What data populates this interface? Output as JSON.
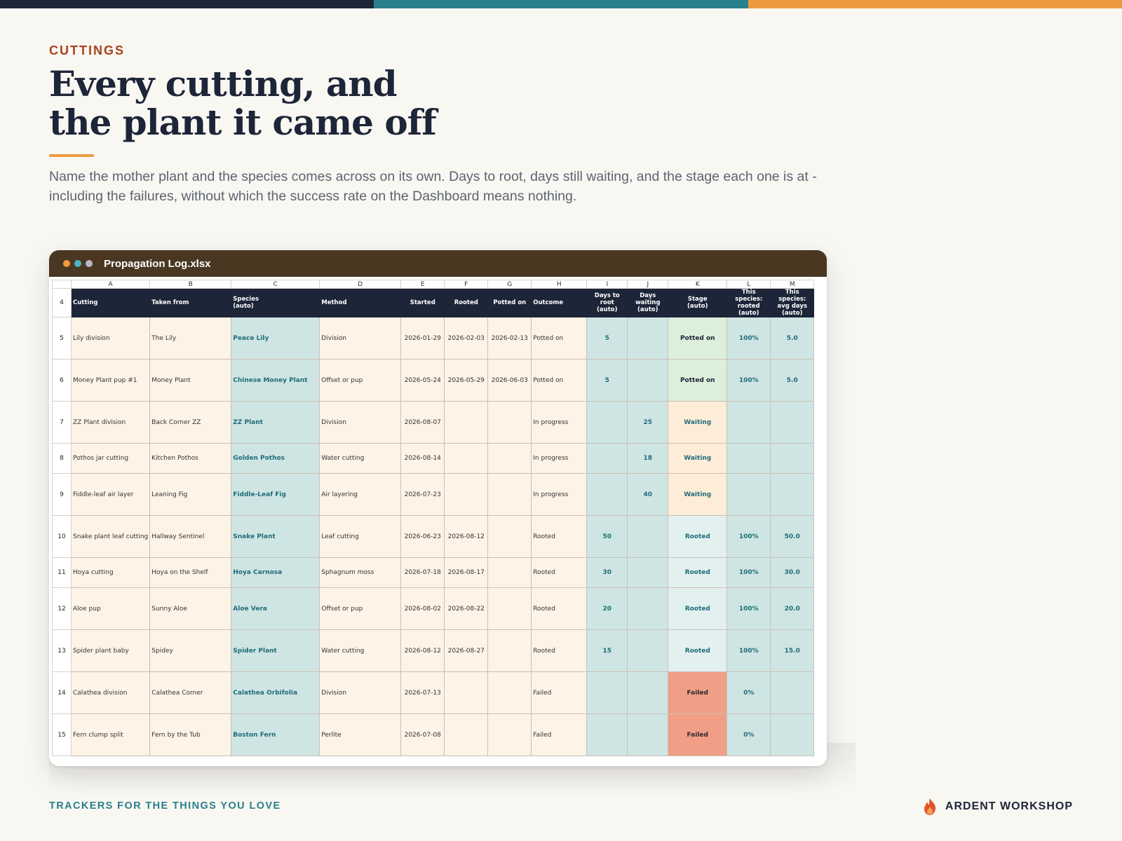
{
  "colors": {
    "navy": "#1d2538",
    "teal": "#2a7f8c",
    "orange": "#ec9a3f",
    "rust": "#a8421d",
    "window_bar": "#4a3722",
    "dot1": "#ec9a3f",
    "dot2": "#4fb3bf",
    "dot3": "#b9b9c3"
  },
  "eyebrow": "CUTTINGS",
  "headline": {
    "line1": "Every cutting, and",
    "line2": "the plant it came off"
  },
  "lede": "Name the mother plant and the species comes across on its own. Days to root, days still waiting, and the stage each one is at - including the failures, without which the success rate on the Dashboard means nothing.",
  "window": {
    "title": "Propagation Log.xlsx"
  },
  "sheet": {
    "column_letters": [
      "A",
      "B",
      "C",
      "D",
      "E",
      "F",
      "G",
      "H",
      "I",
      "J",
      "K",
      "L",
      "M"
    ],
    "header_row_number": "4",
    "headers": [
      "Cutting",
      "Taken from",
      "Species\n(auto)",
      "Method",
      "Started",
      "Rooted",
      "Potted on",
      "Outcome",
      "Days to root\n(auto)",
      "Days waiting\n(auto)",
      "Stage\n(auto)",
      "This species:\nrooted\n(auto)",
      "This species:\navg days\n(auto)"
    ],
    "rows": [
      {
        "num": "5",
        "cutting": "Lily division",
        "taken_from": "The Lily",
        "species": "Peace Lily",
        "method": "Division",
        "started": "2026-01-29",
        "rooted": "2026-02-03",
        "potted_on": "2026-02-13",
        "outcome": "Potted on",
        "days_to_root": "5",
        "days_waiting": "",
        "stage": "Potted on",
        "stage_kind": "potted",
        "sp_rooted": "100%",
        "sp_avg": "5.0",
        "tall": true
      },
      {
        "num": "6",
        "cutting": "Money Plant pup #1",
        "taken_from": "Money Plant",
        "species": "Chinese Money Plant",
        "method": "Offset or pup",
        "started": "2026-05-24",
        "rooted": "2026-05-29",
        "potted_on": "2026-06-03",
        "outcome": "Potted on",
        "days_to_root": "5",
        "days_waiting": "",
        "stage": "Potted on",
        "stage_kind": "potted",
        "sp_rooted": "100%",
        "sp_avg": "5.0",
        "tall": true
      },
      {
        "num": "7",
        "cutting": "ZZ Plant division",
        "taken_from": "Back Corner ZZ",
        "species": "ZZ Plant",
        "method": "Division",
        "started": "2026-08-07",
        "rooted": "",
        "potted_on": "",
        "outcome": "In progress",
        "days_to_root": "",
        "days_waiting": "25",
        "stage": "Waiting",
        "stage_kind": "waiting",
        "sp_rooted": "",
        "sp_avg": "",
        "tall": true
      },
      {
        "num": "8",
        "cutting": "Pothos jar cutting",
        "taken_from": "Kitchen Pothos",
        "species": "Golden Pothos",
        "method": "Water cutting",
        "started": "2026-08-14",
        "rooted": "",
        "potted_on": "",
        "outcome": "In progress",
        "days_to_root": "",
        "days_waiting": "18",
        "stage": "Waiting",
        "stage_kind": "waiting",
        "sp_rooted": "",
        "sp_avg": "",
        "tall": false
      },
      {
        "num": "9",
        "cutting": "Fiddle-leaf air layer",
        "taken_from": "Leaning Fig",
        "species": "Fiddle-Leaf Fig",
        "method": "Air layering",
        "started": "2026-07-23",
        "rooted": "",
        "potted_on": "",
        "outcome": "In progress",
        "days_to_root": "",
        "days_waiting": "40",
        "stage": "Waiting",
        "stage_kind": "waiting",
        "sp_rooted": "",
        "sp_avg": "",
        "tall": true
      },
      {
        "num": "10",
        "cutting": "Snake plant leaf cutting",
        "taken_from": "Hallway Sentinel",
        "species": "Snake Plant",
        "method": "Leaf cutting",
        "started": "2026-06-23",
        "rooted": "2026-08-12",
        "potted_on": "",
        "outcome": "Rooted",
        "days_to_root": "50",
        "days_waiting": "",
        "stage": "Rooted",
        "stage_kind": "rooted",
        "sp_rooted": "100%",
        "sp_avg": "50.0",
        "tall": true
      },
      {
        "num": "11",
        "cutting": "Hoya cutting",
        "taken_from": "Hoya on the Shelf",
        "species": "Hoya Carnosa",
        "method": "Sphagnum moss",
        "started": "2026-07-18",
        "rooted": "2026-08-17",
        "potted_on": "",
        "outcome": "Rooted",
        "days_to_root": "30",
        "days_waiting": "",
        "stage": "Rooted",
        "stage_kind": "rooted",
        "sp_rooted": "100%",
        "sp_avg": "30.0",
        "tall": false
      },
      {
        "num": "12",
        "cutting": "Aloe pup",
        "taken_from": "Sunny Aloe",
        "species": "Aloe Vera",
        "method": "Offset or pup",
        "started": "2026-08-02",
        "rooted": "2026-08-22",
        "potted_on": "",
        "outcome": "Rooted",
        "days_to_root": "20",
        "days_waiting": "",
        "stage": "Rooted",
        "stage_kind": "rooted",
        "sp_rooted": "100%",
        "sp_avg": "20.0",
        "tall": true
      },
      {
        "num": "13",
        "cutting": "Spider plant baby",
        "taken_from": "Spidey",
        "species": "Spider Plant",
        "method": "Water cutting",
        "started": "2026-08-12",
        "rooted": "2026-08-27",
        "potted_on": "",
        "outcome": "Rooted",
        "days_to_root": "15",
        "days_waiting": "",
        "stage": "Rooted",
        "stage_kind": "rooted",
        "sp_rooted": "100%",
        "sp_avg": "15.0",
        "tall": true
      },
      {
        "num": "14",
        "cutting": "Calathea division",
        "taken_from": "Calathea Corner",
        "species": "Calathea Orbifolia",
        "method": "Division",
        "started": "2026-07-13",
        "rooted": "",
        "potted_on": "",
        "outcome": "Failed",
        "days_to_root": "",
        "days_waiting": "",
        "stage": "Failed",
        "stage_kind": "failed",
        "sp_rooted": "0%",
        "sp_avg": "",
        "tall": true
      },
      {
        "num": "15",
        "cutting": "Fern clump split",
        "taken_from": "Fern by the Tub",
        "species": "Boston Fern",
        "method": "Perlite",
        "started": "2026-07-08",
        "rooted": "",
        "potted_on": "",
        "outcome": "Failed",
        "days_to_root": "",
        "days_waiting": "",
        "stage": "Failed",
        "stage_kind": "failed",
        "sp_rooted": "0%",
        "sp_avg": "",
        "tall": true
      }
    ]
  },
  "footer": {
    "tagline": "TRACKERS FOR THE THINGS YOU LOVE",
    "brand": "ARDENT WORKSHOP",
    "logo_icon": "flame-icon"
  }
}
